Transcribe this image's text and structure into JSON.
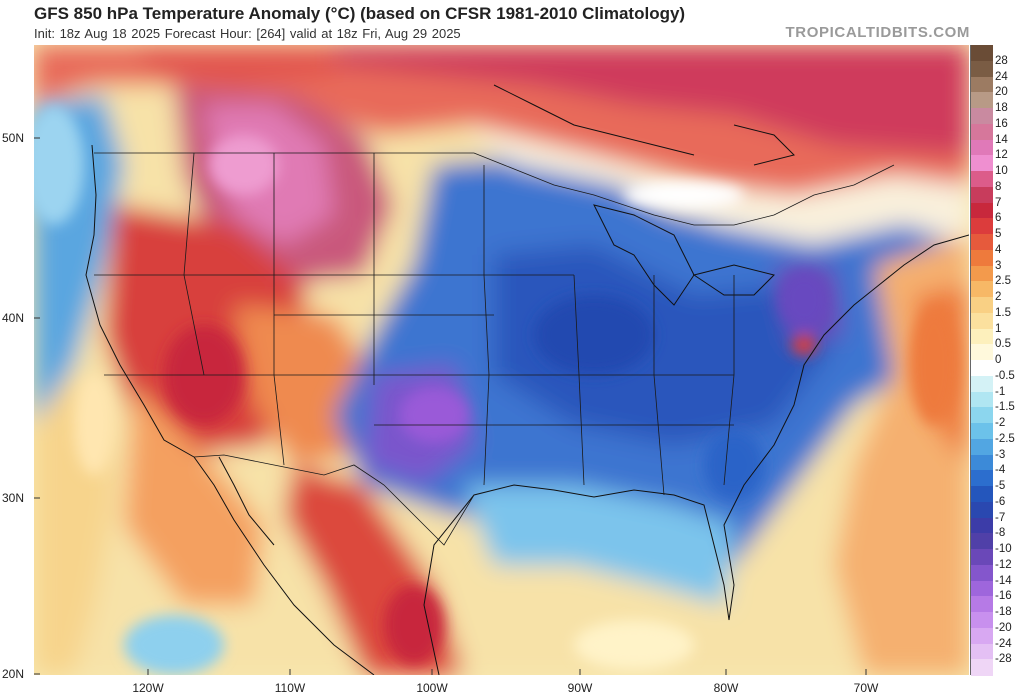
{
  "header": {
    "title": "GFS 850 hPa Temperature Anomaly (°C) (based on CFSR 1981-2010 Climatology)",
    "subtitle": "Init: 18z Aug 18 2025   Forecast Hour: [264]   valid at 18z Fri, Aug 29 2025",
    "brand": "TROPICALTIDBITS.COM"
  },
  "axes": {
    "lat_labels": [
      "50N",
      "40N",
      "30N",
      "20N"
    ],
    "lon_labels": [
      "120W",
      "110W",
      "100W",
      "90W",
      "80W",
      "70W"
    ]
  },
  "colorbar": {
    "labels": [
      "28",
      "24",
      "20",
      "18",
      "16",
      "14",
      "12",
      "10",
      "8",
      "7",
      "6",
      "5",
      "4",
      "3",
      "2.5",
      "2",
      "1.5",
      "1",
      "0.5",
      "0",
      "-0.5",
      "-1",
      "-1.5",
      "-2",
      "-2.5",
      "-3",
      "-4",
      "-5",
      "-6",
      "-7",
      "-8",
      "-10",
      "-12",
      "-14",
      "-16",
      "-18",
      "-20",
      "-24",
      "-28"
    ],
    "colors": [
      "#7a5c44",
      "#9c7b62",
      "#b89a86",
      "#c98aa0",
      "#d6779b",
      "#e079b8",
      "#ef8fd0",
      "#dc5c8a",
      "#c83c5c",
      "#c8283c",
      "#dc3c3c",
      "#e65a3c",
      "#ee7a3c",
      "#f39a4c",
      "#f7b866",
      "#f9d084",
      "#fbe09e",
      "#fdf0bc",
      "#fff9dc",
      "#ffffff",
      "#d4f2f6",
      "#b0e6f2",
      "#8cd6ee",
      "#6cc2ea",
      "#52a6e2",
      "#3c8ad8",
      "#2c6ece",
      "#2456bc",
      "#2a48b0",
      "#3c3ca8",
      "#5040a8",
      "#6a48b8",
      "#8456cc",
      "#9e66dc",
      "#b67ae6",
      "#c890ee",
      "#d8a8f2",
      "#e4c0f4",
      "#efd6f6"
    ]
  }
}
